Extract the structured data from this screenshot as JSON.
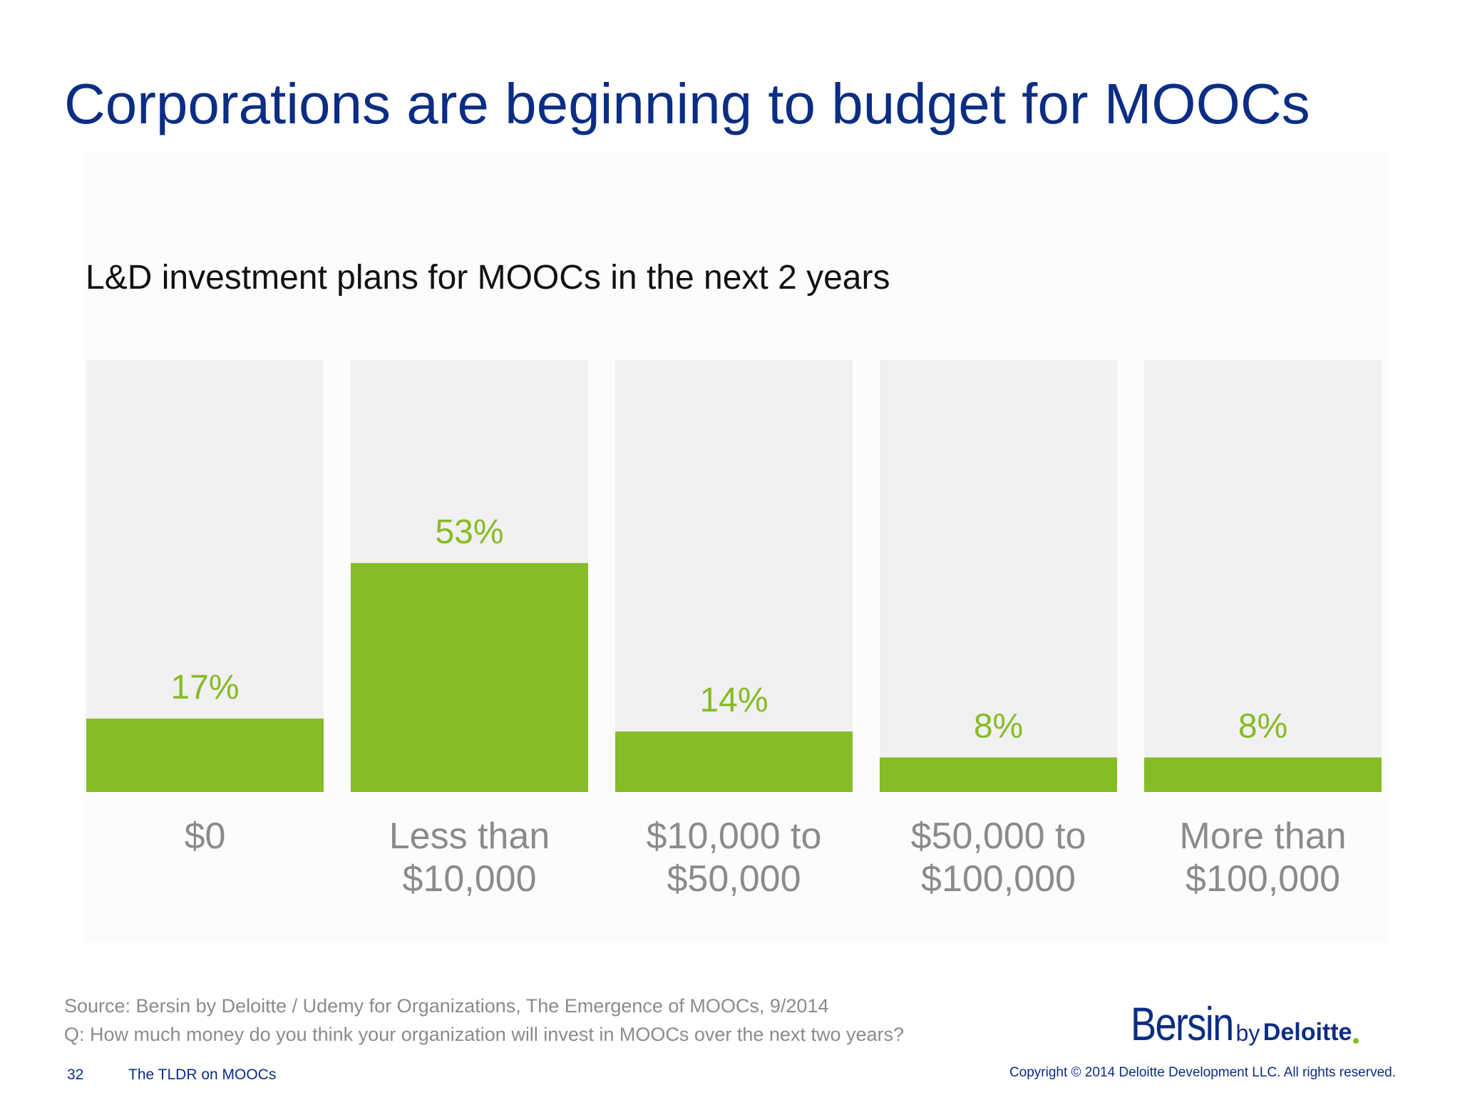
{
  "slide": {
    "title": "Corporations are beginning to budget for MOOCs",
    "source": "Source: Bersin by Deloitte / Udemy for Organizations, The Emergence of MOOCs, 9/2014",
    "question": "Q: How much money do you think your organization will invest in MOOCs over the next two years?",
    "page_number": "32",
    "deck_title": "The TLDR on MOOCs",
    "copyright": "Copyright © 2014 Deloitte Development LLC. All rights reserved.",
    "logo": {
      "bersin": "Bersin",
      "by": "by",
      "deloitte": "Deloitte",
      "dot_color": "#86bc25"
    }
  },
  "colors": {
    "title": "#0b2d83",
    "bar_fill": "#86bc25",
    "bar_track": "#f1f0f2",
    "value_label": "#86bc25",
    "category_label": "#8b8b8b"
  },
  "chart_data": {
    "type": "bar",
    "title": "L&D investment plans for MOOCs in the next 2 years",
    "categories": [
      [
        "$0"
      ],
      [
        "Less than",
        "$10,000"
      ],
      [
        "$10,000 to",
        "$50,000"
      ],
      [
        "$50,000 to",
        "$100,000"
      ],
      [
        "More than",
        "$100,000"
      ]
    ],
    "values": [
      17,
      53,
      14,
      8,
      8
    ],
    "value_labels": [
      "17%",
      "53%",
      "14%",
      "8%",
      "8%"
    ],
    "ylim": [
      0,
      100
    ],
    "xlabel": "",
    "ylabel": "",
    "grid": false,
    "legend": false
  }
}
